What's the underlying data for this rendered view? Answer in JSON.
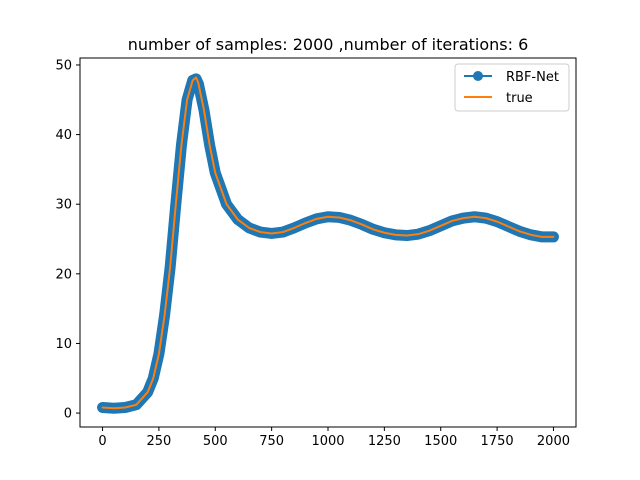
{
  "chart_data": {
    "type": "line",
    "title": "number of samples: 2000 ,number of iterations:  6",
    "xlabel": "",
    "ylabel": "",
    "xlim": [
      -100,
      2100
    ],
    "ylim": [
      -2,
      51
    ],
    "xticks": [
      0,
      250,
      500,
      750,
      1000,
      1250,
      1500,
      1750,
      2000
    ],
    "yticks": [
      0,
      10,
      20,
      30,
      40,
      50
    ],
    "grid": false,
    "legend_position": "top-right",
    "series": [
      {
        "name": "RBF-Net",
        "color": "#1f77b4",
        "marker": "circle",
        "x": [
          0,
          50,
          100,
          150,
          200,
          225,
          250,
          275,
          300,
          325,
          350,
          375,
          400,
          415,
          425,
          450,
          475,
          500,
          550,
          600,
          650,
          700,
          750,
          800,
          850,
          900,
          950,
          1000,
          1050,
          1100,
          1150,
          1200,
          1250,
          1300,
          1350,
          1400,
          1450,
          1500,
          1550,
          1600,
          1650,
          1700,
          1750,
          1800,
          1850,
          1900,
          1950,
          2000
        ],
        "y": [
          0.8,
          0.7,
          0.8,
          1.2,
          3.0,
          5.0,
          8.5,
          14.0,
          21.0,
          30.0,
          38.5,
          45.0,
          47.8,
          48.0,
          47.3,
          43.5,
          38.5,
          34.5,
          30.0,
          27.8,
          26.6,
          26.0,
          25.8,
          26.0,
          26.6,
          27.3,
          27.9,
          28.2,
          28.1,
          27.7,
          27.1,
          26.4,
          25.9,
          25.6,
          25.5,
          25.7,
          26.2,
          26.9,
          27.6,
          28.0,
          28.2,
          28.0,
          27.5,
          26.8,
          26.1,
          25.6,
          25.3,
          25.3
        ]
      },
      {
        "name": "true",
        "color": "#ff7f0e",
        "marker": "none",
        "x": [
          0,
          50,
          100,
          150,
          200,
          225,
          250,
          275,
          300,
          325,
          350,
          375,
          400,
          415,
          425,
          450,
          475,
          500,
          550,
          600,
          650,
          700,
          750,
          800,
          850,
          900,
          950,
          1000,
          1050,
          1100,
          1150,
          1200,
          1250,
          1300,
          1350,
          1400,
          1450,
          1500,
          1550,
          1600,
          1650,
          1700,
          1750,
          1800,
          1850,
          1900,
          1950,
          2000
        ],
        "y": [
          0.8,
          0.7,
          0.8,
          1.2,
          3.0,
          5.0,
          8.5,
          14.0,
          21.0,
          30.0,
          38.5,
          45.0,
          47.8,
          48.2,
          47.4,
          43.5,
          38.5,
          34.5,
          30.0,
          27.8,
          26.6,
          26.0,
          25.8,
          26.0,
          26.6,
          27.3,
          27.9,
          28.2,
          28.1,
          27.7,
          27.1,
          26.4,
          25.9,
          25.6,
          25.5,
          25.7,
          26.2,
          26.9,
          27.6,
          28.0,
          28.2,
          28.0,
          27.5,
          26.8,
          26.1,
          25.6,
          25.3,
          25.3
        ]
      }
    ]
  }
}
